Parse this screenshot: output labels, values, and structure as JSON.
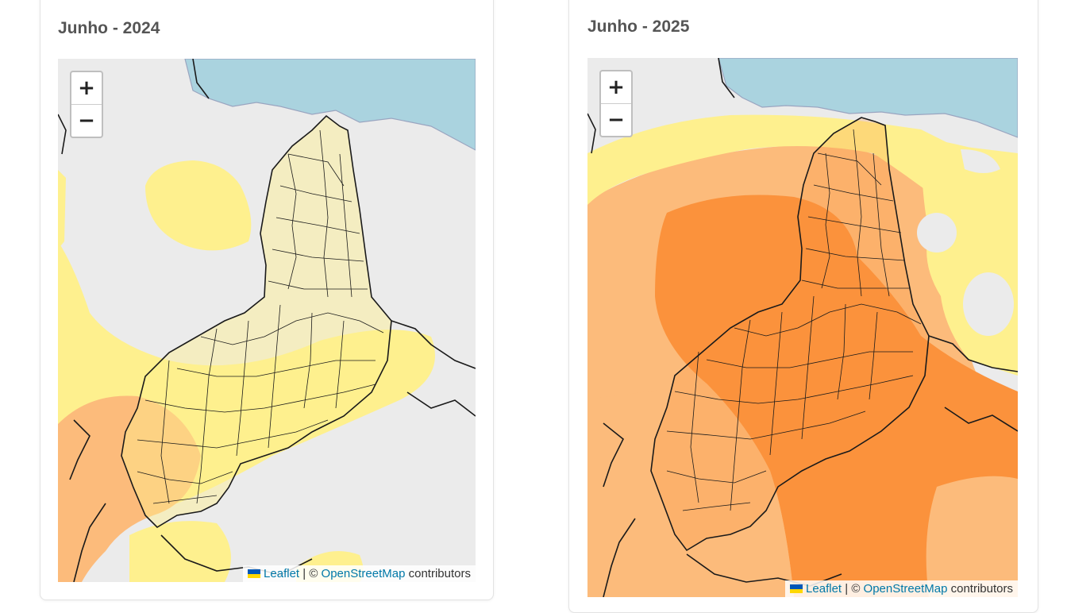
{
  "maps": [
    {
      "title": "Junho - 2024",
      "zoom": {
        "in_label": "+",
        "out_label": "−"
      },
      "attribution": {
        "leaflet": "Leaflet",
        "separator": " | © ",
        "osm": "OpenStreetMap",
        "suffix": " contributors"
      }
    },
    {
      "title": "Junho - 2025",
      "zoom": {
        "in_label": "+",
        "out_label": "−"
      },
      "attribution": {
        "leaflet": "Leaflet",
        "separator": " | © ",
        "osm": "OpenStreetMap",
        "suffix": " contributors"
      }
    }
  ],
  "colors": {
    "base": "#ebebeb",
    "sea": "#aad3df",
    "yellow": "#fef08e",
    "light_orange": "#fcbb7b",
    "orange": "#fb923c",
    "border": "#1a1a1a",
    "link": "#0078a8"
  }
}
